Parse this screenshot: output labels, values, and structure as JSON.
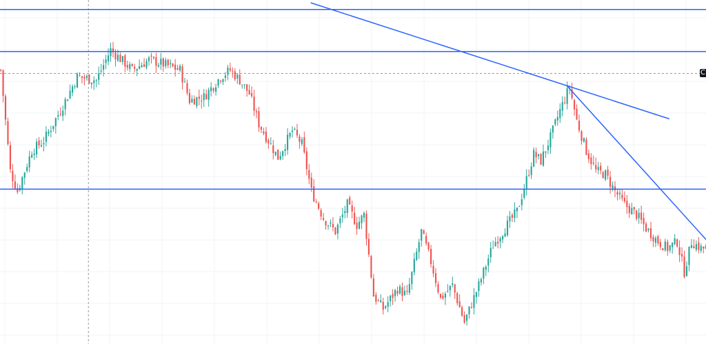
{
  "colors": {
    "up": "#26a69a",
    "down": "#ef5350",
    "drawing": "#2962ff",
    "crosshair": "#9598a1",
    "grid": "#f0f3f7"
  },
  "price_tag": {
    "text": "C"
  },
  "chart_data": {
    "type": "candlestick",
    "title": "",
    "xlabel": "",
    "ylabel": "",
    "grid": true,
    "ylim": [
      0,
      100
    ],
    "x_count": 300,
    "horizontal_levels": [
      98,
      85.5,
      44.6
    ],
    "trendlines": [
      {
        "from": [
          130,
          100
        ],
        "to": [
          280,
          65.5
        ]
      },
      {
        "from": [
          237,
          75.5
        ],
        "to": [
          300,
          26
        ]
      }
    ],
    "crosshair": {
      "x": 37,
      "y": 79
    },
    "path_anchors": [
      [
        0,
        80
      ],
      [
        4,
        50
      ],
      [
        7,
        44
      ],
      [
        13,
        56
      ],
      [
        18,
        59
      ],
      [
        25,
        68
      ],
      [
        32,
        78
      ],
      [
        40,
        77
      ],
      [
        46,
        86
      ],
      [
        55,
        80
      ],
      [
        62,
        83
      ],
      [
        67,
        82
      ],
      [
        75,
        80
      ],
      [
        79,
        71
      ],
      [
        85,
        72
      ],
      [
        92,
        78
      ],
      [
        96,
        80
      ],
      [
        100,
        77
      ],
      [
        104,
        73
      ],
      [
        108,
        64
      ],
      [
        112,
        59
      ],
      [
        116,
        54
      ],
      [
        122,
        62
      ],
      [
        126,
        58
      ],
      [
        130,
        44
      ],
      [
        135,
        36
      ],
      [
        140,
        32
      ],
      [
        145,
        40
      ],
      [
        149,
        34
      ],
      [
        152,
        37
      ],
      [
        156,
        13
      ],
      [
        160,
        9
      ],
      [
        166,
        15
      ],
      [
        170,
        13
      ],
      [
        176,
        32
      ],
      [
        180,
        23
      ],
      [
        184,
        12
      ],
      [
        189,
        16
      ],
      [
        194,
        5
      ],
      [
        200,
        16
      ],
      [
        206,
        28
      ],
      [
        211,
        33
      ],
      [
        216,
        38
      ],
      [
        219,
        45
      ],
      [
        223,
        55
      ],
      [
        226,
        53
      ],
      [
        230,
        60
      ],
      [
        234,
        68
      ],
      [
        238,
        75
      ],
      [
        241,
        65
      ],
      [
        245,
        56
      ],
      [
        249,
        50
      ],
      [
        253,
        49
      ],
      [
        257,
        44
      ],
      [
        261,
        40
      ],
      [
        266,
        37
      ],
      [
        270,
        33
      ],
      [
        275,
        29
      ],
      [
        279,
        27
      ],
      [
        283,
        29
      ],
      [
        286,
        20
      ],
      [
        289,
        29
      ],
      [
        293,
        27
      ],
      [
        297,
        27
      ],
      [
        300,
        25
      ]
    ]
  }
}
